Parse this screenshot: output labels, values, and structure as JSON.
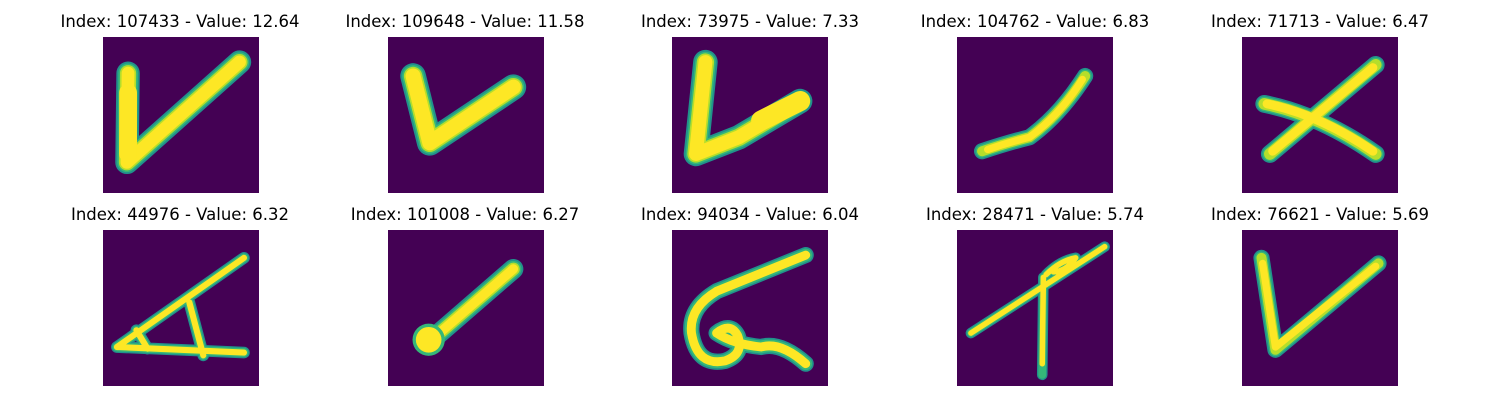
{
  "colors": {
    "background": "#440154",
    "stroke_core": "#fde725",
    "stroke_mid": "#b5de2b",
    "stroke_edge": "#35b779",
    "stroke_halo": "#21918c"
  },
  "panels": [
    {
      "title": "Index: 107433 - Value: 12.64",
      "depicts": "check-mark"
    },
    {
      "title": "Index: 109648 - Value: 11.58",
      "depicts": "check-mark"
    },
    {
      "title": "Index: 73975 - Value: 7.33",
      "depicts": "check-mark"
    },
    {
      "title": "Index: 104762 - Value: 6.83",
      "depicts": "diagonal-stroke"
    },
    {
      "title": "Index: 71713 - Value: 6.47",
      "depicts": "cross"
    },
    {
      "title": "Index: 44976 - Value: 6.32",
      "depicts": "triangle-sketch"
    },
    {
      "title": "Index: 101008 - Value: 6.27",
      "depicts": "diagonal-stroke"
    },
    {
      "title": "Index: 94034 - Value: 6.04",
      "depicts": "loop-stroke"
    },
    {
      "title": "Index: 28471 - Value: 5.74",
      "depicts": "pin-stroke"
    },
    {
      "title": "Index: 76621 - Value: 5.69",
      "depicts": "check-mark"
    }
  ]
}
